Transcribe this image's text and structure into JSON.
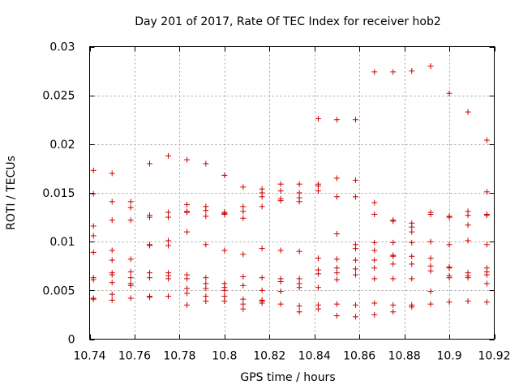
{
  "chart_data": {
    "type": "scatter",
    "title": "Day 201 of 2017, Rate Of TEC Index for receiver hob2",
    "xlabel": "GPS time / hours",
    "ylabel": "ROTI / TECUs",
    "xlim": [
      10.74,
      10.92
    ],
    "ylim": [
      0,
      0.03
    ],
    "x_ticks": [
      10.74,
      10.76,
      10.78,
      10.8,
      10.82,
      10.84,
      10.86,
      10.88,
      10.9,
      10.92
    ],
    "x_tick_labels": [
      "10.74",
      "10.76",
      "10.78",
      "10.8",
      "10.82",
      "10.84",
      "10.86",
      "10.88",
      "10.9",
      "10.92"
    ],
    "y_ticks": [
      0,
      0.005,
      0.01,
      0.015,
      0.02,
      0.025,
      0.03
    ],
    "y_tick_labels": [
      "0",
      "0.005",
      "0.01",
      "0.015",
      "0.02",
      "0.025",
      "0.03"
    ],
    "grid": true,
    "marker": "+",
    "marker_color": "#cc0000",
    "series": [
      {
        "name": "ROTI",
        "points": [
          [
            10.7417,
            0.0173
          ],
          [
            10.7417,
            0.0149
          ],
          [
            10.7417,
            0.0116
          ],
          [
            10.7417,
            0.0106
          ],
          [
            10.7417,
            0.0089
          ],
          [
            10.7417,
            0.0063
          ],
          [
            10.7417,
            0.0061
          ],
          [
            10.7417,
            0.0042
          ],
          [
            10.7417,
            0.0041
          ],
          [
            10.75,
            0.017
          ],
          [
            10.75,
            0.0141
          ],
          [
            10.75,
            0.0122
          ],
          [
            10.75,
            0.0091
          ],
          [
            10.75,
            0.0081
          ],
          [
            10.75,
            0.0068
          ],
          [
            10.75,
            0.0066
          ],
          [
            10.75,
            0.0058
          ],
          [
            10.75,
            0.0046
          ],
          [
            10.75,
            0.004
          ],
          [
            10.7583,
            0.0141
          ],
          [
            10.7583,
            0.0135
          ],
          [
            10.7583,
            0.0122
          ],
          [
            10.7583,
            0.0082
          ],
          [
            10.7583,
            0.0069
          ],
          [
            10.7583,
            0.0063
          ],
          [
            10.7583,
            0.0057
          ],
          [
            10.7583,
            0.0055
          ],
          [
            10.7583,
            0.0042
          ],
          [
            10.7667,
            0.018
          ],
          [
            10.7667,
            0.0127
          ],
          [
            10.7667,
            0.0125
          ],
          [
            10.7667,
            0.0097
          ],
          [
            10.7667,
            0.0096
          ],
          [
            10.7667,
            0.0068
          ],
          [
            10.7667,
            0.0063
          ],
          [
            10.7667,
            0.0044
          ],
          [
            10.7667,
            0.0043
          ],
          [
            10.775,
            0.0188
          ],
          [
            10.775,
            0.013
          ],
          [
            10.775,
            0.0125
          ],
          [
            10.775,
            0.0101
          ],
          [
            10.775,
            0.0096
          ],
          [
            10.775,
            0.0068
          ],
          [
            10.775,
            0.0065
          ],
          [
            10.775,
            0.0062
          ],
          [
            10.775,
            0.0044
          ],
          [
            10.7833,
            0.0184
          ],
          [
            10.7833,
            0.0138
          ],
          [
            10.7833,
            0.0131
          ],
          [
            10.7833,
            0.013
          ],
          [
            10.7833,
            0.011
          ],
          [
            10.7833,
            0.0066
          ],
          [
            10.7833,
            0.0062
          ],
          [
            10.7833,
            0.0052
          ],
          [
            10.7833,
            0.0047
          ],
          [
            10.7833,
            0.0035
          ],
          [
            10.7917,
            0.018
          ],
          [
            10.7917,
            0.0136
          ],
          [
            10.7917,
            0.0132
          ],
          [
            10.7917,
            0.0126
          ],
          [
            10.7917,
            0.0097
          ],
          [
            10.7917,
            0.0063
          ],
          [
            10.7917,
            0.0057
          ],
          [
            10.7917,
            0.0052
          ],
          [
            10.7917,
            0.0044
          ],
          [
            10.7917,
            0.0039
          ],
          [
            10.8,
            0.0168
          ],
          [
            10.8,
            0.013
          ],
          [
            10.8,
            0.0129
          ],
          [
            10.8,
            0.0128
          ],
          [
            10.8,
            0.0091
          ],
          [
            10.8,
            0.0057
          ],
          [
            10.8,
            0.0053
          ],
          [
            10.8,
            0.005
          ],
          [
            10.8,
            0.0044
          ],
          [
            10.8,
            0.0039
          ],
          [
            10.8083,
            0.0156
          ],
          [
            10.8083,
            0.0136
          ],
          [
            10.8083,
            0.0131
          ],
          [
            10.8083,
            0.0124
          ],
          [
            10.8083,
            0.0087
          ],
          [
            10.8083,
            0.0064
          ],
          [
            10.8083,
            0.0055
          ],
          [
            10.8083,
            0.0041
          ],
          [
            10.8083,
            0.0036
          ],
          [
            10.8083,
            0.0031
          ],
          [
            10.8167,
            0.0154
          ],
          [
            10.8167,
            0.015
          ],
          [
            10.8167,
            0.0146
          ],
          [
            10.8167,
            0.0136
          ],
          [
            10.8167,
            0.0093
          ],
          [
            10.8167,
            0.0063
          ],
          [
            10.8167,
            0.005
          ],
          [
            10.8167,
            0.004
          ],
          [
            10.8167,
            0.0039
          ],
          [
            10.8167,
            0.0037
          ],
          [
            10.825,
            0.0159
          ],
          [
            10.825,
            0.0152
          ],
          [
            10.825,
            0.0144
          ],
          [
            10.825,
            0.0142
          ],
          [
            10.825,
            0.0091
          ],
          [
            10.825,
            0.0062
          ],
          [
            10.825,
            0.0059
          ],
          [
            10.825,
            0.0049
          ],
          [
            10.825,
            0.0036
          ],
          [
            10.8333,
            0.0159
          ],
          [
            10.8333,
            0.015
          ],
          [
            10.8333,
            0.0145
          ],
          [
            10.8333,
            0.0141
          ],
          [
            10.8333,
            0.009
          ],
          [
            10.8333,
            0.0062
          ],
          [
            10.8333,
            0.0057
          ],
          [
            10.8333,
            0.0053
          ],
          [
            10.8333,
            0.0034
          ],
          [
            10.8333,
            0.0028
          ],
          [
            10.8417,
            0.0226
          ],
          [
            10.8417,
            0.0159
          ],
          [
            10.8417,
            0.0157
          ],
          [
            10.8417,
            0.0152
          ],
          [
            10.8417,
            0.0083
          ],
          [
            10.8417,
            0.0071
          ],
          [
            10.8417,
            0.0067
          ],
          [
            10.8417,
            0.0053
          ],
          [
            10.8417,
            0.0035
          ],
          [
            10.8417,
            0.0031
          ],
          [
            10.85,
            0.0225
          ],
          [
            10.85,
            0.0165
          ],
          [
            10.85,
            0.0146
          ],
          [
            10.85,
            0.0108
          ],
          [
            10.85,
            0.0082
          ],
          [
            10.85,
            0.0073
          ],
          [
            10.85,
            0.0068
          ],
          [
            10.85,
            0.0061
          ],
          [
            10.85,
            0.0036
          ],
          [
            10.85,
            0.0024
          ],
          [
            10.8583,
            0.0225
          ],
          [
            10.8583,
            0.0163
          ],
          [
            10.8583,
            0.0146
          ],
          [
            10.8583,
            0.0097
          ],
          [
            10.8583,
            0.0093
          ],
          [
            10.8583,
            0.0081
          ],
          [
            10.8583,
            0.0072
          ],
          [
            10.8583,
            0.0066
          ],
          [
            10.8583,
            0.0035
          ],
          [
            10.8583,
            0.0023
          ],
          [
            10.8667,
            0.0274
          ],
          [
            10.8667,
            0.014
          ],
          [
            10.8667,
            0.0128
          ],
          [
            10.8667,
            0.0099
          ],
          [
            10.8667,
            0.0091
          ],
          [
            10.8667,
            0.0081
          ],
          [
            10.8667,
            0.0073
          ],
          [
            10.8667,
            0.0062
          ],
          [
            10.8667,
            0.0037
          ],
          [
            10.8667,
            0.0025
          ],
          [
            10.875,
            0.0274
          ],
          [
            10.875,
            0.0122
          ],
          [
            10.875,
            0.0121
          ],
          [
            10.875,
            0.0099
          ],
          [
            10.875,
            0.0086
          ],
          [
            10.875,
            0.0085
          ],
          [
            10.875,
            0.0077
          ],
          [
            10.875,
            0.0062
          ],
          [
            10.875,
            0.0035
          ],
          [
            10.875,
            0.0028
          ],
          [
            10.8833,
            0.0275
          ],
          [
            10.8833,
            0.0119
          ],
          [
            10.8833,
            0.0115
          ],
          [
            10.8833,
            0.011
          ],
          [
            10.8833,
            0.0099
          ],
          [
            10.8833,
            0.0085
          ],
          [
            10.8833,
            0.0077
          ],
          [
            10.8833,
            0.0062
          ],
          [
            10.8833,
            0.0035
          ],
          [
            10.8833,
            0.0033
          ],
          [
            10.8917,
            0.028
          ],
          [
            10.8917,
            0.013
          ],
          [
            10.8917,
            0.0128
          ],
          [
            10.8917,
            0.01
          ],
          [
            10.8917,
            0.0083
          ],
          [
            10.8917,
            0.0075
          ],
          [
            10.8917,
            0.007
          ],
          [
            10.8917,
            0.0049
          ],
          [
            10.8917,
            0.0036
          ],
          [
            10.9,
            0.0252
          ],
          [
            10.9,
            0.0126
          ],
          [
            10.9,
            0.0125
          ],
          [
            10.9,
            0.0097
          ],
          [
            10.9,
            0.0074
          ],
          [
            10.9,
            0.0073
          ],
          [
            10.9,
            0.0065
          ],
          [
            10.9,
            0.0063
          ],
          [
            10.9,
            0.0038
          ],
          [
            10.9083,
            0.0233
          ],
          [
            10.9083,
            0.0131
          ],
          [
            10.9083,
            0.0127
          ],
          [
            10.9083,
            0.0117
          ],
          [
            10.9083,
            0.0101
          ],
          [
            10.9083,
            0.0068
          ],
          [
            10.9083,
            0.0065
          ],
          [
            10.9083,
            0.0063
          ],
          [
            10.9083,
            0.0039
          ],
          [
            10.9167,
            0.0204
          ],
          [
            10.9167,
            0.0151
          ],
          [
            10.9167,
            0.0128
          ],
          [
            10.9167,
            0.0127
          ],
          [
            10.9167,
            0.0097
          ],
          [
            10.9167,
            0.0073
          ],
          [
            10.9167,
            0.0069
          ],
          [
            10.9167,
            0.0066
          ],
          [
            10.9167,
            0.0057
          ],
          [
            10.9167,
            0.0038
          ]
        ]
      }
    ]
  }
}
